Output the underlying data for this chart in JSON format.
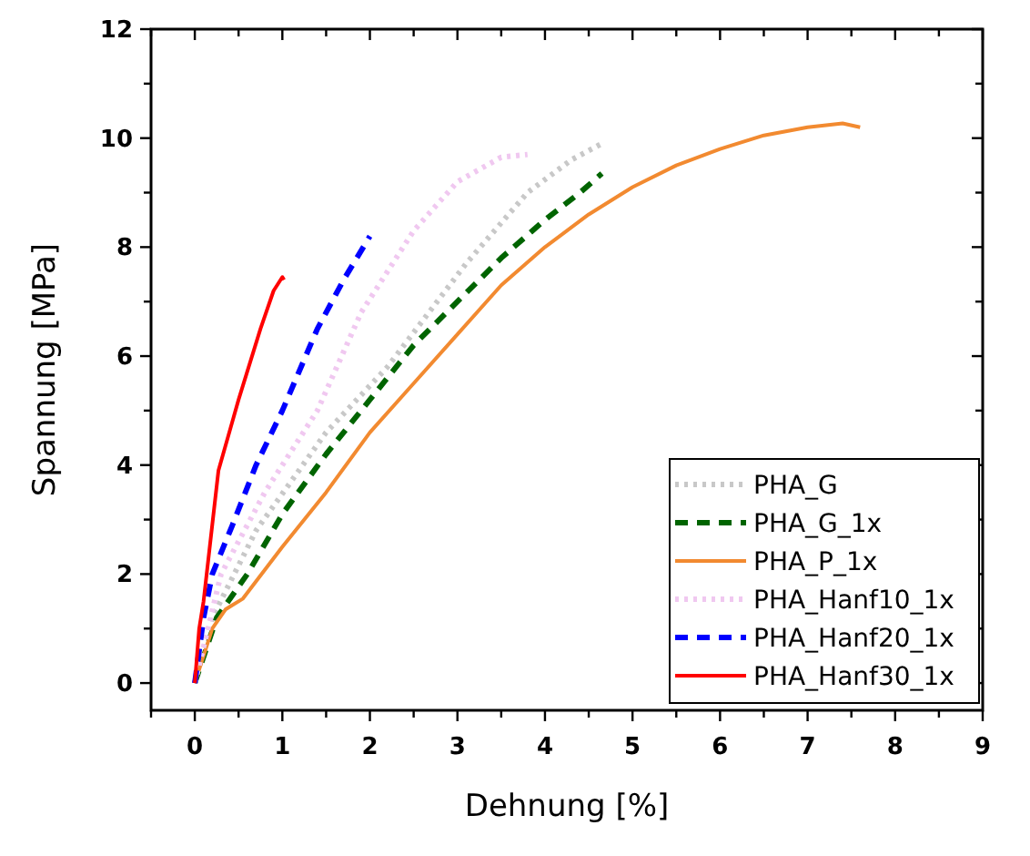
{
  "chart_data": {
    "type": "line",
    "xlabel": "Dehnung [%]",
    "ylabel": "Spannung [MPa]",
    "xlim": [
      -0.5,
      9
    ],
    "ylim": [
      -0.5,
      12
    ],
    "xticks": [
      {
        "value": -0.5,
        "label": null
      },
      0,
      {
        "value": 0.5,
        "label": null
      },
      1,
      {
        "value": 1.5,
        "label": null
      },
      2,
      {
        "value": 2.5,
        "label": null
      },
      3,
      {
        "value": 3.5,
        "label": null
      },
      4,
      {
        "value": 4.5,
        "label": null
      },
      5,
      {
        "value": 5.5,
        "label": null
      },
      6,
      {
        "value": 6.5,
        "label": null
      },
      7,
      {
        "value": 7.5,
        "label": null
      },
      8,
      {
        "value": 8.5,
        "label": null
      },
      9
    ],
    "yticks": [
      0,
      {
        "value": 1,
        "label": null
      },
      2,
      {
        "value": 3,
        "label": null
      },
      4,
      {
        "value": 5,
        "label": null
      },
      6,
      {
        "value": 7,
        "label": null
      },
      8,
      {
        "value": 9,
        "label": null
      },
      10,
      {
        "value": 11,
        "label": null
      },
      12
    ],
    "grid": false,
    "legend": "bottom right",
    "marker": "none",
    "series": [
      {
        "name": "PHA_G",
        "color": "#c8c8c8",
        "line_style": "dotted",
        "x": [
          0,
          0.2,
          0.7,
          1.5,
          2.2,
          3.1,
          3.8,
          4.3,
          4.65
        ],
        "values": [
          0,
          1.2,
          2.8,
          4.6,
          5.8,
          7.7,
          9.0,
          9.6,
          9.9
        ]
      },
      {
        "name": "PHA_G_1x",
        "color": "#006400",
        "line_style": "dashed",
        "x": [
          0,
          0.25,
          0.6,
          1.0,
          1.5,
          2.0,
          2.5,
          3.0,
          3.5,
          4.0,
          4.4,
          4.65
        ],
        "values": [
          0,
          1.2,
          2.0,
          3.1,
          4.2,
          5.2,
          6.2,
          7.0,
          7.8,
          8.5,
          9.0,
          9.35
        ]
      },
      {
        "name": "PHA_P_1x",
        "color": "#f28a30",
        "line_style": "solid",
        "x": [
          0,
          0.2,
          0.35,
          0.55,
          1,
          1.5,
          2,
          2.5,
          3,
          3.5,
          4,
          4.5,
          5,
          5.5,
          6,
          6.5,
          7,
          7.4,
          7.6
        ],
        "values": [
          0,
          1,
          1.35,
          1.55,
          2.5,
          3.5,
          4.6,
          5.5,
          6.4,
          7.3,
          8.0,
          8.6,
          9.1,
          9.5,
          9.8,
          10.05,
          10.2,
          10.27,
          10.2
        ]
      },
      {
        "name": "PHA_Hanf10_1x",
        "color": "#f0c8f0",
        "line_style": "dotted",
        "x": [
          0,
          0.3,
          0.8,
          1.4,
          1.9,
          2.5,
          3.0,
          3.5,
          3.8
        ],
        "values": [
          0,
          2,
          3.5,
          5,
          6.8,
          8.3,
          9.2,
          9.65,
          9.7
        ]
      },
      {
        "name": "PHA_Hanf20_1x",
        "color": "#0000ff",
        "line_style": "dashed",
        "x": [
          0,
          0.1,
          0.2,
          0.43,
          0.7,
          1.0,
          1.4,
          1.7,
          2.0
        ],
        "values": [
          0,
          1.2,
          2,
          2.9,
          4,
          5,
          6.5,
          7.4,
          8.2
        ]
      },
      {
        "name": "PHA_Hanf30_1x",
        "color": "#ff0000",
        "line_style": "solid",
        "x": [
          0,
          0.05,
          0.1,
          0.27,
          0.5,
          0.75,
          0.9,
          1.0,
          1.02
        ],
        "values": [
          0,
          1,
          1.5,
          3.9,
          5.2,
          6.5,
          7.2,
          7.45,
          7.4
        ]
      }
    ]
  }
}
